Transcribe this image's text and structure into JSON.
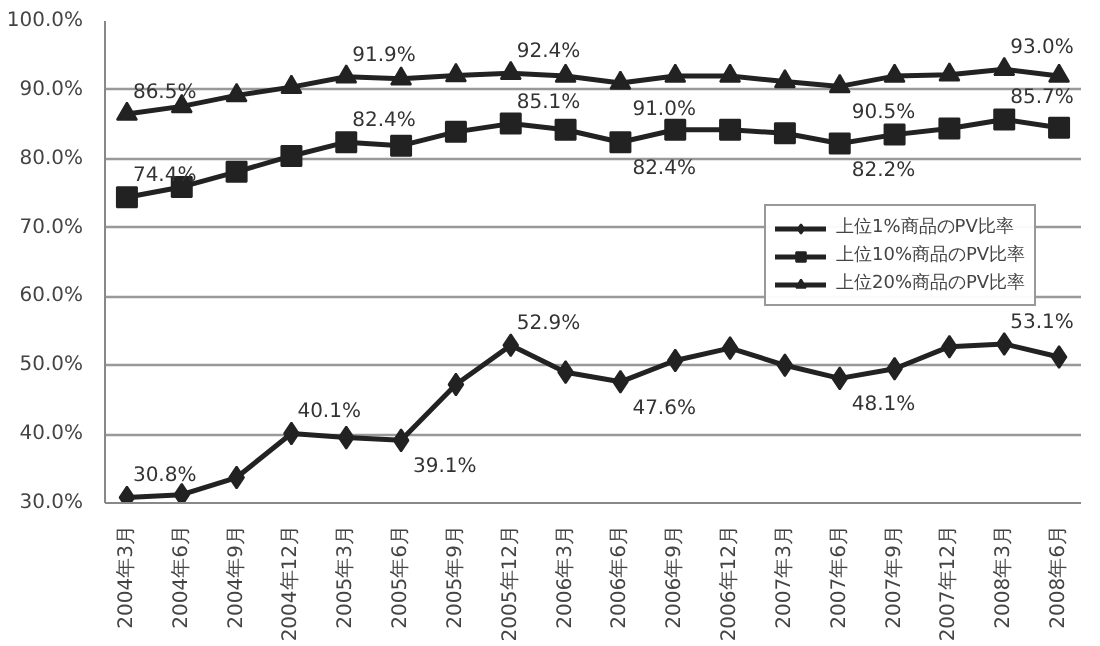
{
  "chart_data": {
    "type": "line",
    "categories": [
      "2004年3月",
      "2004年6月",
      "2004年9月",
      "2004年12月",
      "2005年3月",
      "2005年6月",
      "2005年9月",
      "2005年12月",
      "2006年3月",
      "2006年6月",
      "2006年9月",
      "2006年12月",
      "2007年3月",
      "2007年6月",
      "2007年9月",
      "2007年12月",
      "2008年3月",
      "2008年6月"
    ],
    "series": [
      {
        "name": "上位1%商品のPV比率",
        "color": "#222222",
        "marker": "diamond",
        "values": [
          30.8,
          31.2,
          33.7,
          40.1,
          39.5,
          39.1,
          47.2,
          52.9,
          49.0,
          47.6,
          50.7,
          52.5,
          50.0,
          48.1,
          49.5,
          52.7,
          53.1,
          51.2
        ],
        "value_labels": [
          "30.8%",
          null,
          null,
          "40.1%",
          null,
          "39.1%",
          null,
          "52.9%",
          null,
          "47.6%",
          null,
          null,
          null,
          "48.1%",
          null,
          null,
          "53.1%",
          null
        ]
      },
      {
        "name": "上位10%商品のPV比率",
        "color": "#222222",
        "marker": "square",
        "values": [
          74.4,
          75.9,
          78.1,
          80.4,
          82.4,
          81.9,
          83.9,
          85.1,
          84.2,
          82.4,
          84.2,
          84.2,
          83.7,
          82.2,
          83.5,
          84.4,
          85.7,
          84.5
        ],
        "value_labels": [
          "74.4%",
          null,
          null,
          null,
          "82.4%",
          null,
          null,
          "85.1%",
          null,
          "82.4%",
          null,
          null,
          null,
          "82.2%",
          null,
          null,
          "85.7%",
          null
        ]
      },
      {
        "name": "上位20%商品のPV比率",
        "color": "#222222",
        "marker": "triangle",
        "values": [
          86.5,
          87.6,
          89.2,
          90.4,
          91.9,
          91.6,
          92.1,
          92.4,
          92.0,
          91.0,
          92.0,
          92.0,
          91.2,
          90.5,
          92.0,
          92.2,
          93.0,
          92.0
        ],
        "value_labels": [
          "86.5%",
          null,
          null,
          null,
          "91.9%",
          null,
          null,
          "92.4%",
          null,
          "91.0%",
          null,
          null,
          null,
          "90.5%",
          null,
          null,
          "93.0%",
          null
        ]
      }
    ],
    "ylim": [
      30,
      100
    ],
    "yticks": [
      {
        "value": 30,
        "label": "30.0%"
      },
      {
        "value": 40,
        "label": "40.0%"
      },
      {
        "value": 50,
        "label": "50.0%"
      },
      {
        "value": 60,
        "label": "60.0%"
      },
      {
        "value": 70,
        "label": "70.0%"
      },
      {
        "value": 80,
        "label": "80.0%"
      },
      {
        "value": 90,
        "label": "90.0%"
      },
      {
        "value": 100,
        "label": "100.0%"
      }
    ],
    "grid": "y",
    "legend": "right",
    "line_style": "solid"
  }
}
